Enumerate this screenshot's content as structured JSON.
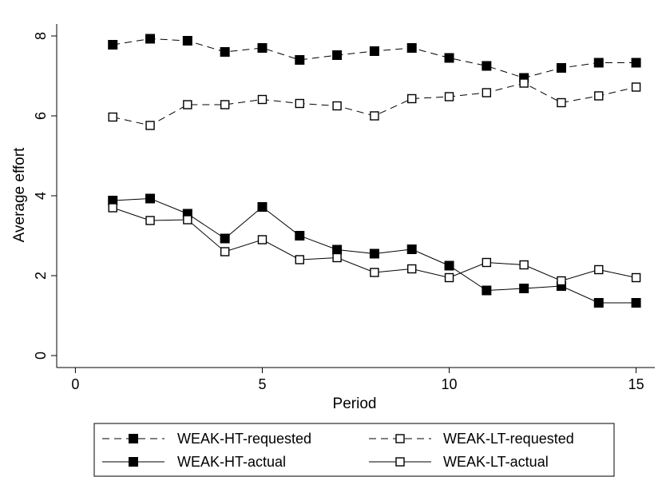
{
  "chart_data": {
    "type": "line",
    "title": "",
    "xlabel": "Period",
    "ylabel": "Average effort",
    "xlim": [
      -0.5,
      15.5
    ],
    "ylim": [
      -0.3,
      8.3
    ],
    "xticks": [
      0,
      5,
      10,
      15
    ],
    "yticks": [
      0,
      2,
      4,
      6,
      8
    ],
    "xtick_labels": [
      "0",
      "5",
      "10",
      "15"
    ],
    "ytick_labels": [
      "0",
      "2",
      "4",
      "6",
      "8"
    ],
    "grid": false,
    "legend_position": "bottom",
    "x": [
      1,
      2,
      3,
      4,
      5,
      6,
      7,
      8,
      9,
      10,
      11,
      12,
      13,
      14,
      15
    ],
    "series": [
      {
        "name": "WEAK-HT-requested",
        "line_style": "dashed",
        "marker": "filled-square",
        "values": [
          7.78,
          7.93,
          7.88,
          7.6,
          7.7,
          7.4,
          7.52,
          7.62,
          7.7,
          7.45,
          7.25,
          6.95,
          7.2,
          7.33,
          7.33
        ]
      },
      {
        "name": "WEAK-LT-requested",
        "line_style": "dashed",
        "marker": "hollow-square",
        "values": [
          5.97,
          5.76,
          6.28,
          6.28,
          6.41,
          6.31,
          6.25,
          6.0,
          6.43,
          6.48,
          6.58,
          6.82,
          6.33,
          6.5,
          6.72
        ]
      },
      {
        "name": "WEAK-HT-actual",
        "line_style": "solid",
        "marker": "filled-square",
        "values": [
          3.88,
          3.93,
          3.55,
          2.93,
          3.72,
          3.0,
          2.65,
          2.55,
          2.66,
          2.25,
          1.63,
          1.68,
          1.74,
          1.32,
          1.32
        ]
      },
      {
        "name": "WEAK-LT-actual",
        "line_style": "solid",
        "marker": "hollow-square",
        "values": [
          3.7,
          3.38,
          3.4,
          2.6,
          2.9,
          2.4,
          2.45,
          2.08,
          2.17,
          1.95,
          2.33,
          2.27,
          1.87,
          2.15,
          1.95
        ]
      }
    ]
  }
}
